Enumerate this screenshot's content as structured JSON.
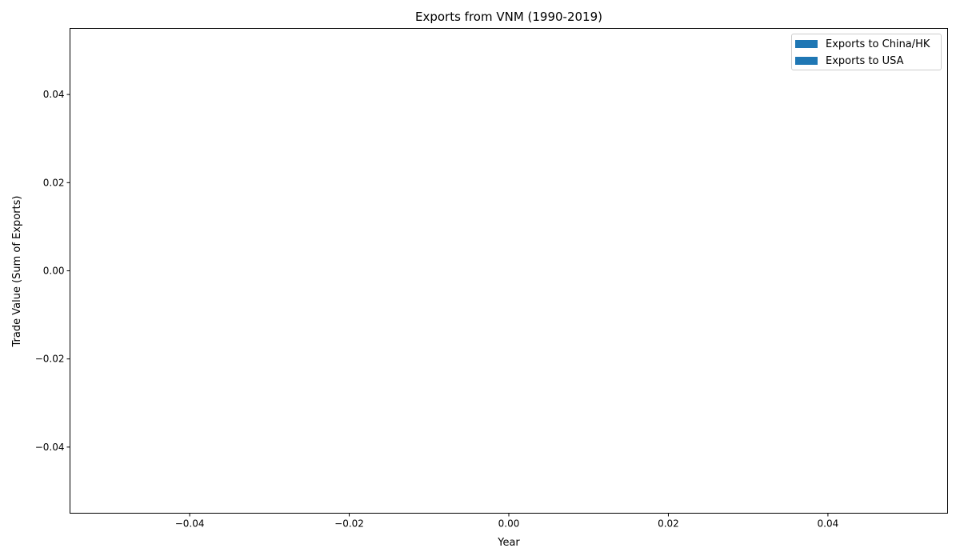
{
  "chart_data": {
    "type": "bar",
    "title": "Exports from VNM (1990-2019)",
    "xlabel": "Year",
    "ylabel": "Trade Value (Sum of Exports)",
    "series": [
      {
        "name": "Exports to China/HK",
        "color": "#1f77b4",
        "values": []
      },
      {
        "name": "Exports to USA",
        "color": "#1f77b4",
        "values": []
      }
    ],
    "xlim": [
      -0.055,
      0.055
    ],
    "ylim": [
      -0.055,
      0.055
    ],
    "xticks": [
      "−0.04",
      "−0.02",
      "0.00",
      "0.02",
      "0.04"
    ],
    "yticks": [
      "−0.04",
      "−0.02",
      "0.00",
      "0.02",
      "0.04"
    ],
    "grid": false,
    "legend_position": "top-right"
  }
}
